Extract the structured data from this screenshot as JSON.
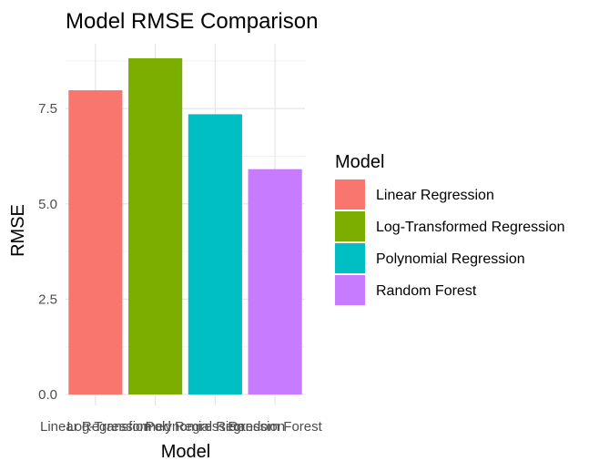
{
  "chart_data": {
    "type": "bar",
    "title": "Model RMSE Comparison",
    "xlabel": "Model",
    "ylabel": "RMSE",
    "categories": [
      "Linear Regression",
      "Log-Transformed Regression",
      "Polynomial Regression",
      "Random Forest"
    ],
    "values": [
      7.98,
      8.82,
      7.35,
      5.91
    ],
    "ylim": [
      0,
      9.2
    ],
    "yticks": [
      0.0,
      2.5,
      5.0,
      7.5
    ],
    "ytick_labels": [
      "0.0",
      "2.5",
      "5.0",
      "7.5"
    ],
    "colors": [
      "#F8766D",
      "#7CAE00",
      "#00BFC4",
      "#C77CFF"
    ],
    "grid": true,
    "legend": {
      "title": "Model",
      "position": "right",
      "entries": [
        "Linear Regression",
        "Log-Transformed Regression",
        "Polynomial Regression",
        "Random Forest"
      ]
    }
  }
}
